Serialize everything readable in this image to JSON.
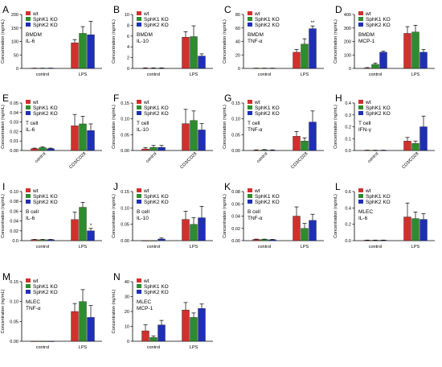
{
  "legend_labels": [
    "wt",
    "SphK1 KO",
    "SphK2 KO"
  ],
  "series_colors": [
    "#d0312d",
    "#2e8b2e",
    "#1f2fb5"
  ],
  "chart_data": [
    {
      "panel": "A",
      "type": "bar",
      "title": [
        "BMDM",
        "IL-6"
      ],
      "ylabel": "Concentration (ng/mL)",
      "ylim": [
        0,
        200
      ],
      "yticks": [
        0,
        50,
        100,
        150,
        200
      ],
      "ytick_labels": [
        "0",
        "50",
        "100",
        "150",
        "200"
      ],
      "categories": [
        "control",
        "LPS"
      ],
      "xtick_rotated": false,
      "series": [
        {
          "name": "wt",
          "values": [
            0.5,
            95
          ],
          "errors": [
            0.5,
            12
          ]
        },
        {
          "name": "SphK1 KO",
          "values": [
            0.5,
            130
          ],
          "errors": [
            0.5,
            25
          ]
        },
        {
          "name": "SphK2 KO",
          "values": [
            0.5,
            125
          ],
          "errors": [
            0.5,
            50
          ]
        }
      ],
      "annotations": []
    },
    {
      "panel": "B",
      "type": "bar",
      "title": [
        "BMDM",
        "IL-10"
      ],
      "ylabel": "Concentration (ng/mL)",
      "ylim": [
        0,
        10
      ],
      "yticks": [
        0,
        2,
        4,
        6,
        8,
        10
      ],
      "ytick_labels": [
        "0",
        "2",
        "4",
        "6",
        "8",
        "10"
      ],
      "categories": [
        "control",
        "LPS"
      ],
      "xtick_rotated": false,
      "series": [
        {
          "name": "wt",
          "values": [
            0.05,
            5.8
          ],
          "errors": [
            0.05,
            1.0
          ]
        },
        {
          "name": "SphK1 KO",
          "values": [
            0.05,
            5.9
          ],
          "errors": [
            0.05,
            2.0
          ]
        },
        {
          "name": "SphK2 KO",
          "values": [
            0.05,
            2.3
          ],
          "errors": [
            0.05,
            0.4
          ]
        }
      ],
      "annotations": []
    },
    {
      "panel": "C",
      "type": "bar",
      "title": [
        "BMDM",
        "TNF-α"
      ],
      "ylabel": "Concentration (ng/mL)",
      "ylim": [
        0,
        80
      ],
      "yticks": [
        0,
        20,
        40,
        60,
        80
      ],
      "ytick_labels": [
        "0",
        "20",
        "40",
        "60",
        "80"
      ],
      "categories": [
        "control",
        "LPS"
      ],
      "xtick_rotated": false,
      "series": [
        {
          "name": "wt",
          "values": [
            0.2,
            24
          ],
          "errors": [
            0.2,
            4
          ]
        },
        {
          "name": "SphK1 KO",
          "values": [
            0.2,
            36
          ],
          "errors": [
            0.2,
            8
          ]
        },
        {
          "name": "SphK2 KO",
          "values": [
            0.2,
            59
          ],
          "errors": [
            0.2,
            4
          ]
        }
      ],
      "annotations": [
        {
          "text": "**",
          "category": 1,
          "series": 2
        }
      ]
    },
    {
      "panel": "D",
      "type": "bar",
      "title": [
        "BMDM",
        "MCP-1"
      ],
      "ylabel": "Concentration (ng/mL)",
      "ylim": [
        0,
        400
      ],
      "yticks": [
        0,
        100,
        200,
        300,
        400
      ],
      "ytick_labels": [
        "0",
        "100",
        "200",
        "300",
        "400"
      ],
      "categories": [
        "control",
        "LPS"
      ],
      "xtick_rotated": false,
      "series": [
        {
          "name": "wt",
          "values": [
            3,
            260
          ],
          "errors": [
            3,
            50
          ]
        },
        {
          "name": "SphK1 KO",
          "values": [
            30,
            270
          ],
          "errors": [
            10,
            50
          ]
        },
        {
          "name": "SphK2 KO",
          "values": [
            120,
            120
          ],
          "errors": [
            8,
            20
          ]
        }
      ],
      "annotations": []
    },
    {
      "panel": "E",
      "type": "bar",
      "title": [
        "T cell",
        "IL-6"
      ],
      "ylabel": "Concentration (ng/mL)",
      "ylim": [
        0,
        0.05
      ],
      "yticks": [
        0,
        0.01,
        0.02,
        0.03,
        0.04,
        0.05
      ],
      "ytick_labels": [
        "0.00",
        "0.01",
        "0.02",
        "0.03",
        "0.04",
        "0.05"
      ],
      "categories": [
        "control",
        "CD3/CD28"
      ],
      "xtick_rotated": true,
      "series": [
        {
          "name": "wt",
          "values": [
            0.002,
            0.026
          ],
          "errors": [
            0.0005,
            0.012
          ]
        },
        {
          "name": "SphK1 KO",
          "values": [
            0.003,
            0.028
          ],
          "errors": [
            0.001,
            0.008
          ]
        },
        {
          "name": "SphK2 KO",
          "values": [
            0.002,
            0.021
          ],
          "errors": [
            0.0005,
            0.007
          ]
        }
      ],
      "annotations": []
    },
    {
      "panel": "F",
      "type": "bar",
      "title": [
        "T cell",
        "IL-10"
      ],
      "ylabel": "Concentration (ng/mL)",
      "ylim": [
        0,
        0.15
      ],
      "yticks": [
        0,
        0.05,
        0.1,
        0.15
      ],
      "ytick_labels": [
        "0.00",
        "0.05",
        "0.10",
        "0.15"
      ],
      "categories": [
        "control",
        "CD3/CD28"
      ],
      "xtick_rotated": true,
      "series": [
        {
          "name": "wt",
          "values": [
            0.005,
            0.085
          ],
          "errors": [
            0.004,
            0.045
          ]
        },
        {
          "name": "SphK1 KO",
          "values": [
            0.01,
            0.095
          ],
          "errors": [
            0.006,
            0.03
          ]
        },
        {
          "name": "SphK2 KO",
          "values": [
            0.01,
            0.065
          ],
          "errors": [
            0.006,
            0.02
          ]
        }
      ],
      "annotations": []
    },
    {
      "panel": "G",
      "type": "bar",
      "title": [
        "T cell",
        "TNF-α"
      ],
      "ylabel": "Concentration (ng/mL)",
      "ylim": [
        0,
        0.15
      ],
      "yticks": [
        0,
        0.05,
        0.1,
        0.15
      ],
      "ytick_labels": [
        "0.00",
        "0.05",
        "0.10",
        "0.15"
      ],
      "categories": [
        "control",
        "CD3/CD28"
      ],
      "xtick_rotated": true,
      "series": [
        {
          "name": "wt",
          "values": [
            0.001,
            0.045
          ],
          "errors": [
            0.001,
            0.015
          ]
        },
        {
          "name": "SphK1 KO",
          "values": [
            0.002,
            0.03
          ],
          "errors": [
            0.001,
            0.01
          ]
        },
        {
          "name": "SphK2 KO",
          "values": [
            0.001,
            0.09
          ],
          "errors": [
            0.001,
            0.035
          ]
        }
      ],
      "annotations": []
    },
    {
      "panel": "H",
      "type": "bar",
      "title": [
        "T cell",
        "IFN-γ"
      ],
      "ylabel": "Concentration (ng/mL)",
      "ylim": [
        0,
        0.4
      ],
      "yticks": [
        0,
        0.1,
        0.2,
        0.3,
        0.4
      ],
      "ytick_labels": [
        "0.0",
        "0.1",
        "0.2",
        "0.3",
        "0.4"
      ],
      "categories": [
        "control",
        "CD3/CD28"
      ],
      "xtick_rotated": true,
      "series": [
        {
          "name": "wt",
          "values": [
            0.002,
            0.08
          ],
          "errors": [
            0.001,
            0.03
          ]
        },
        {
          "name": "SphK1 KO",
          "values": [
            0.002,
            0.06
          ],
          "errors": [
            0.001,
            0.02
          ]
        },
        {
          "name": "SphK2 KO",
          "values": [
            0.002,
            0.2
          ],
          "errors": [
            0.001,
            0.09
          ]
        }
      ],
      "annotations": []
    },
    {
      "panel": "I",
      "type": "bar",
      "title": [
        "B cell",
        "IL-6"
      ],
      "ylabel": "Concentration (ng/mL)",
      "ylim": [
        0,
        0.1
      ],
      "yticks": [
        0,
        0.02,
        0.04,
        0.06,
        0.08,
        0.1
      ],
      "ytick_labels": [
        "0.0",
        "0.02",
        "0.04",
        "0.06",
        "0.08",
        "0.10"
      ],
      "categories": [
        "control",
        "LPS"
      ],
      "xtick_rotated": false,
      "series": [
        {
          "name": "wt",
          "values": [
            0.002,
            0.043
          ],
          "errors": [
            0.0005,
            0.015
          ]
        },
        {
          "name": "SphK1 KO",
          "values": [
            0.002,
            0.068
          ],
          "errors": [
            0.0005,
            0.01
          ]
        },
        {
          "name": "SphK2 KO",
          "values": [
            0.002,
            0.02
          ],
          "errors": [
            0.0005,
            0.005
          ]
        }
      ],
      "annotations": [
        {
          "text": "*",
          "category": 1,
          "series": 2
        }
      ]
    },
    {
      "panel": "J",
      "type": "bar",
      "title": [
        "B cell",
        "IL-10"
      ],
      "ylabel": "Concentration (ng/mL)",
      "ylim": [
        0,
        0.15
      ],
      "yticks": [
        0,
        0.05,
        0.1,
        0.15
      ],
      "ytick_labels": [
        "0.00",
        "0.05",
        "0.10",
        "0.15"
      ],
      "categories": [
        "control",
        "LPS"
      ],
      "xtick_rotated": false,
      "series": [
        {
          "name": "wt",
          "values": [
            0.0,
            0.065
          ],
          "errors": [
            0.0,
            0.025
          ]
        },
        {
          "name": "SphK1 KO",
          "values": [
            0.0,
            0.05
          ],
          "errors": [
            0.0,
            0.02
          ]
        },
        {
          "name": "SphK2 KO",
          "values": [
            0.005,
            0.07
          ],
          "errors": [
            0.003,
            0.035
          ]
        }
      ],
      "annotations": []
    },
    {
      "panel": "K",
      "type": "bar",
      "title": [
        "B cell",
        "TNF-α"
      ],
      "ylabel": "Concentration (ng/mL)",
      "ylim": [
        0,
        0.08
      ],
      "yticks": [
        0,
        0.02,
        0.04,
        0.06,
        0.08
      ],
      "ytick_labels": [
        "0.00",
        "0.02",
        "0.04",
        "0.06",
        "0.08"
      ],
      "categories": [
        "control",
        "LPS"
      ],
      "xtick_rotated": false,
      "series": [
        {
          "name": "wt",
          "values": [
            0.002,
            0.04
          ],
          "errors": [
            0.0005,
            0.015
          ]
        },
        {
          "name": "SphK1 KO",
          "values": [
            0.002,
            0.02
          ],
          "errors": [
            0.0005,
            0.008
          ]
        },
        {
          "name": "SphK2 KO",
          "values": [
            0.0015,
            0.033
          ],
          "errors": [
            0.0005,
            0.01
          ]
        }
      ],
      "annotations": []
    },
    {
      "panel": "L",
      "type": "bar",
      "title": [
        "MLEC",
        "IL-6"
      ],
      "ylabel": "Concentration (ng/mL)",
      "ylim": [
        0,
        0.6
      ],
      "yticks": [
        0,
        0.2,
        0.4,
        0.6
      ],
      "ytick_labels": [
        "0.0",
        "0.2",
        "0.4",
        "0.6"
      ],
      "categories": [
        "control",
        "LPS"
      ],
      "xtick_rotated": false,
      "series": [
        {
          "name": "wt",
          "values": [
            0.005,
            0.29
          ],
          "errors": [
            0.002,
            0.17
          ]
        },
        {
          "name": "SphK1 KO",
          "values": [
            0.005,
            0.27
          ],
          "errors": [
            0.002,
            0.08
          ]
        },
        {
          "name": "SphK2 KO",
          "values": [
            0.005,
            0.26
          ],
          "errors": [
            0.002,
            0.07
          ]
        }
      ],
      "annotations": []
    },
    {
      "panel": "M",
      "type": "bar",
      "title": [
        "MLEC",
        "TNF-α"
      ],
      "ylabel": "Concentration (ng/mL)",
      "ylim": [
        0,
        0.15
      ],
      "yticks": [
        0,
        0.05,
        0.1,
        0.15
      ],
      "ytick_labels": [
        "0.00",
        "0.05",
        "0.10",
        "0.15"
      ],
      "categories": [
        "control",
        "LPS"
      ],
      "xtick_rotated": false,
      "series": [
        {
          "name": "wt",
          "values": [
            0.0,
            0.075
          ],
          "errors": [
            0.0,
            0.02
          ]
        },
        {
          "name": "SphK1 KO",
          "values": [
            0.0,
            0.1
          ],
          "errors": [
            0.0,
            0.03
          ]
        },
        {
          "name": "SphK2 KO",
          "values": [
            0.0,
            0.06
          ],
          "errors": [
            0.0,
            0.03
          ]
        }
      ],
      "annotations": []
    },
    {
      "panel": "N",
      "type": "bar",
      "title": [
        "MLEC",
        "MCP-1"
      ],
      "ylabel": "Concentration (ng/mL)",
      "ylim": [
        0,
        40
      ],
      "yticks": [
        0,
        10,
        20,
        30,
        40
      ],
      "ytick_labels": [
        "0",
        "10",
        "20",
        "30",
        "40"
      ],
      "categories": [
        "control",
        "LPS"
      ],
      "xtick_rotated": false,
      "series": [
        {
          "name": "wt",
          "values": [
            7,
            21
          ],
          "errors": [
            4,
            5
          ]
        },
        {
          "name": "SphK1 KO",
          "values": [
            2.5,
            16
          ],
          "errors": [
            1,
            3
          ]
        },
        {
          "name": "SphK2 KO",
          "values": [
            11,
            22
          ],
          "errors": [
            3,
            3
          ]
        }
      ],
      "annotations": []
    }
  ]
}
